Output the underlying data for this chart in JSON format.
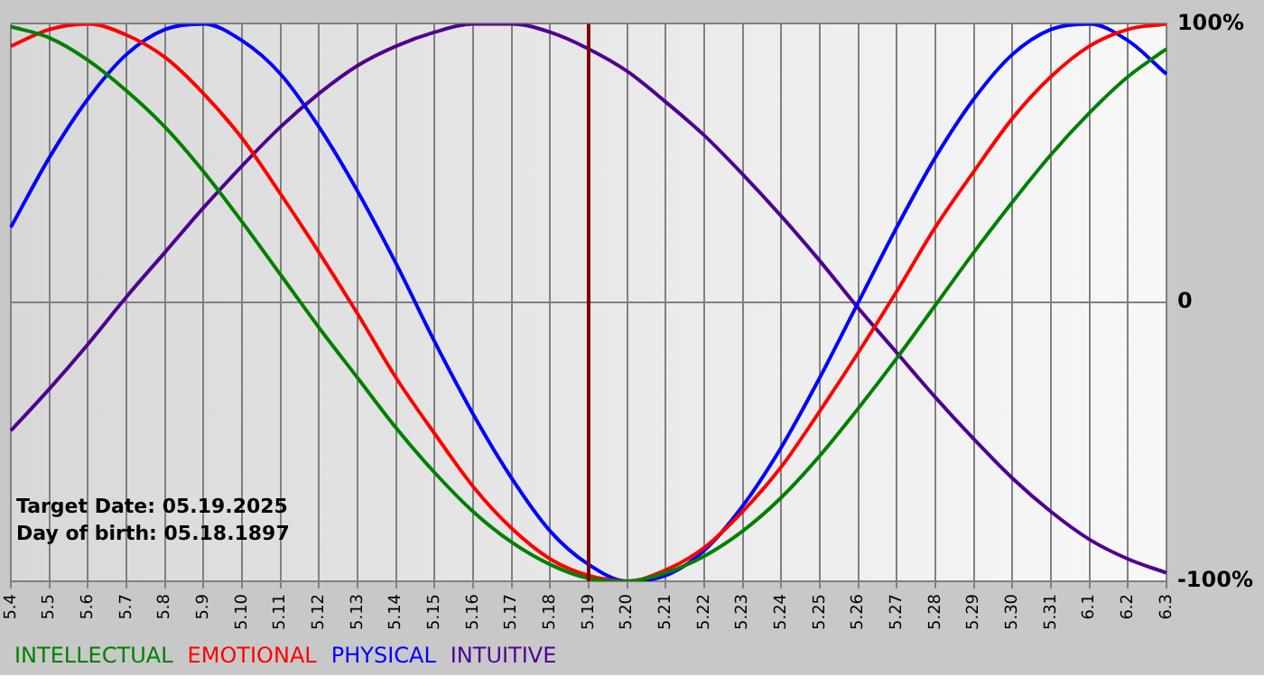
{
  "chart_data": {
    "type": "line",
    "categories": [
      "5.4",
      "5.5",
      "5.6",
      "5.7",
      "5.8",
      "5.9",
      "5.10",
      "5.11",
      "5.12",
      "5.13",
      "5.14",
      "5.15",
      "5.16",
      "5.17",
      "5.18",
      "5.19",
      "5.20",
      "5.21",
      "5.22",
      "5.23",
      "5.24",
      "5.25",
      "5.26",
      "5.27",
      "5.28",
      "5.29",
      "5.30",
      "5.31",
      "6.1",
      "6.2",
      "6.3"
    ],
    "series": [
      {
        "name": "INTELLECTUAL",
        "color": "#008000",
        "values": [
          99,
          95,
          87,
          76,
          63,
          47,
          29,
          10,
          -9,
          -27,
          -45,
          -61,
          -75,
          -86,
          -94,
          -99,
          -100,
          -97,
          -91,
          -82,
          -70,
          -55,
          -38,
          -20,
          -1,
          18,
          36,
          53,
          68,
          81,
          91
        ]
      },
      {
        "name": "EMOTIONAL",
        "color": "#ff0000",
        "values": [
          92,
          98,
          100,
          96,
          88,
          75,
          59,
          39,
          18,
          -4,
          -27,
          -47,
          -66,
          -81,
          -92,
          -98,
          -100,
          -96,
          -88,
          -75,
          -59,
          -39,
          -18,
          4,
          27,
          47,
          66,
          81,
          92,
          98,
          100
        ]
      },
      {
        "name": "PHYSICAL",
        "color": "#0000ff",
        "values": [
          27,
          52,
          73,
          89,
          98,
          100,
          94,
          82,
          63,
          40,
          14,
          -14,
          -40,
          -63,
          -82,
          -94,
          -100,
          -98,
          -89,
          -73,
          -52,
          -27,
          0,
          27,
          52,
          73,
          89,
          98,
          100,
          94,
          82
        ]
      },
      {
        "name": "INTUITIVE",
        "color": "#500090",
        "values": [
          -46,
          -31,
          -15,
          2,
          18,
          34,
          49,
          63,
          75,
          85,
          92,
          97,
          100,
          100,
          97,
          91,
          83,
          72,
          60,
          46,
          31,
          15,
          -2,
          -18,
          -34,
          -49,
          -63,
          -75,
          -85,
          -92,
          -97
        ]
      }
    ],
    "ylim": [
      -100,
      100
    ],
    "yticks": [
      {
        "value": -100,
        "label": "-100%"
      },
      0,
      {
        "value": 100,
        "label": "100%"
      }
    ],
    "ref_lines": [
      {
        "axis": "x",
        "value": "5.19",
        "color": "#800000"
      }
    ],
    "annotations": [
      "Target Date: 05.19.2025",
      "Day of birth: 05.18.1897"
    ],
    "grid": true,
    "legend": "bottom",
    "marker": "none",
    "line_style": "solid"
  }
}
